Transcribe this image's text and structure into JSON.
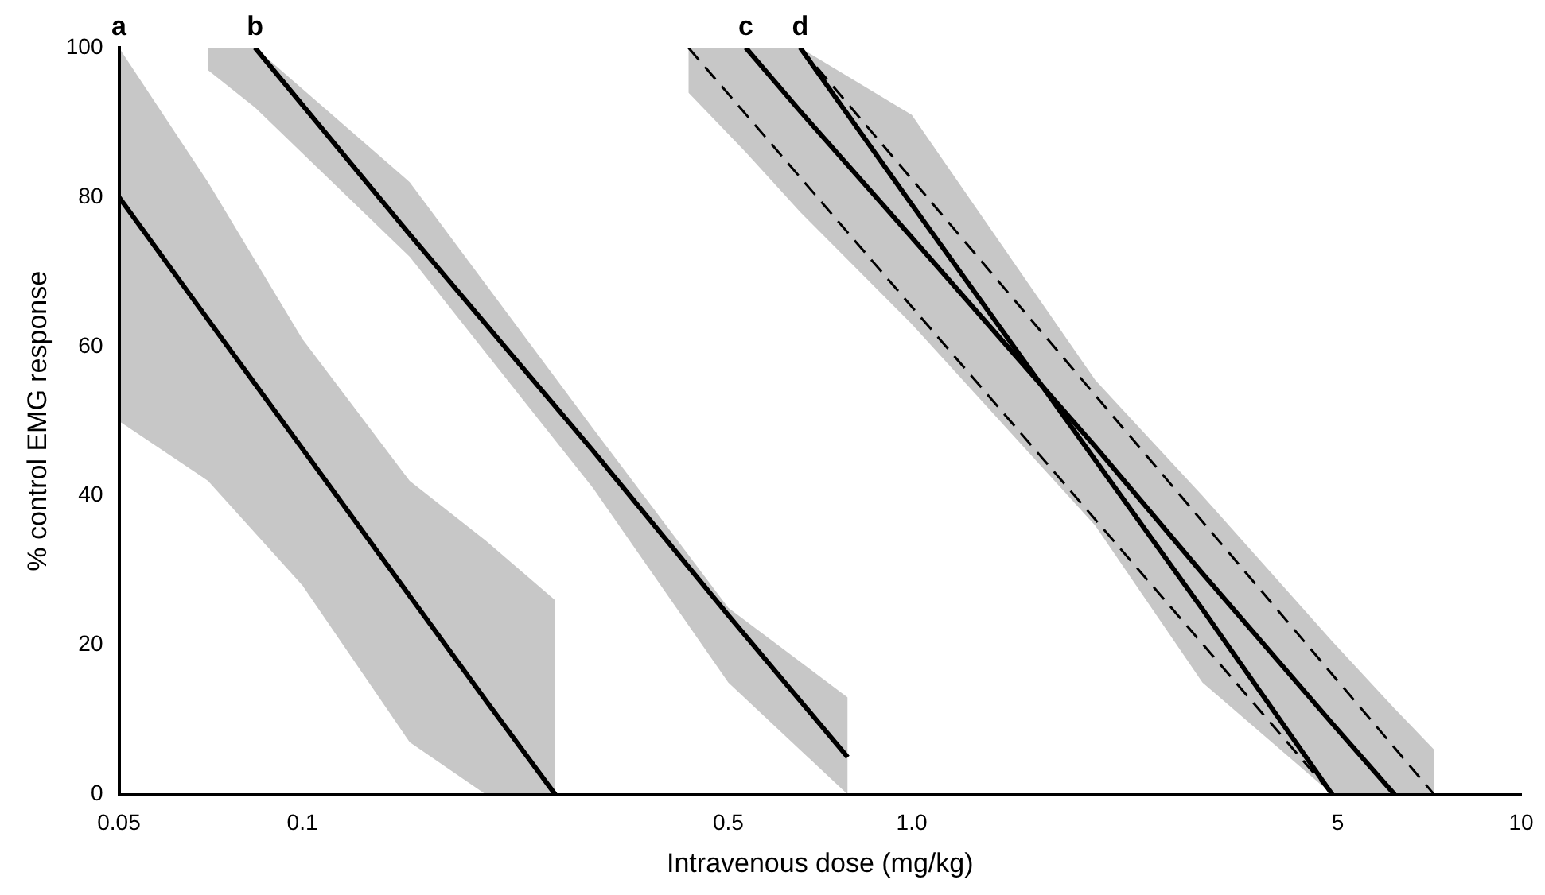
{
  "chart_data": {
    "type": "line",
    "xlabel": "Intravenous dose (mg/kg)",
    "ylabel": "% control EMG response",
    "log": "x",
    "grid": false,
    "legend": false,
    "marker": "none",
    "line_style": "solid",
    "xlim": [
      0.05,
      10
    ],
    "xticks": [
      0.05,
      0.1,
      0.5,
      {
        "value": 1,
        "label": "1.0"
      },
      5,
      10
    ],
    "ylim": [
      0,
      100
    ],
    "yticks": [
      0,
      20,
      40,
      60,
      80,
      100
    ],
    "annotations": [
      {
        "text": "a",
        "x": 0.05,
        "y": 100
      },
      {
        "text": "b",
        "x": 0.0836,
        "y": 100
      },
      {
        "text": "c",
        "x": 0.534,
        "y": 100
      },
      {
        "text": "d",
        "x": 0.656,
        "y": 100
      }
    ],
    "series": [
      {
        "color": "#000000",
        "x": [
          0.05,
          0.07,
          0.1,
          0.15,
          0.2,
          0.26
        ],
        "values": [
          80,
          63.6,
          46.3,
          26.6,
          12.6,
          0
        ],
        "lower": [
          50,
          42,
          28,
          7,
          0,
          0
        ],
        "upper": [
          100,
          82,
          61,
          42,
          34,
          26
        ]
      },
      {
        "color": "#000000",
        "x": [
          0.07,
          0.0836,
          0.15,
          0.3,
          0.5,
          0.785
        ],
        "values": [
          null,
          100,
          75,
          46,
          24,
          5
        ],
        "lower": [
          97,
          92,
          72,
          41,
          15,
          0
        ],
        "upper": [
          100,
          100,
          82,
          49,
          25,
          13
        ]
      },
      {
        "color": "#000000",
        "x": [
          0.43,
          0.534,
          0.656,
          1,
          2,
          3,
          4.9,
          6.2,
          7.2
        ],
        "values": [
          null,
          100,
          91.5,
          74.6,
          46.6,
          29.6,
          9.5,
          0,
          null
        ],
        "lower": [
          94,
          86,
          78,
          63,
          36,
          15,
          0,
          0,
          0
        ],
        "upper": [
          100,
          100,
          100,
          91,
          55.5,
          40,
          20.5,
          11.5,
          6
        ]
      },
      {
        "color": "#000000",
        "x": [
          0.656,
          1,
          2,
          3,
          4.9
        ],
        "values": [
          100,
          79,
          44.8,
          24.8,
          0
        ]
      },
      {
        "color": "#000000",
        "line_style": "dashed",
        "x": [
          0.43,
          4.9
        ],
        "values": [
          100,
          0
        ]
      },
      {
        "color": "#000000",
        "line_style": "dashed",
        "x": [
          0.656,
          7.2
        ],
        "values": [
          100,
          0
        ]
      }
    ]
  }
}
